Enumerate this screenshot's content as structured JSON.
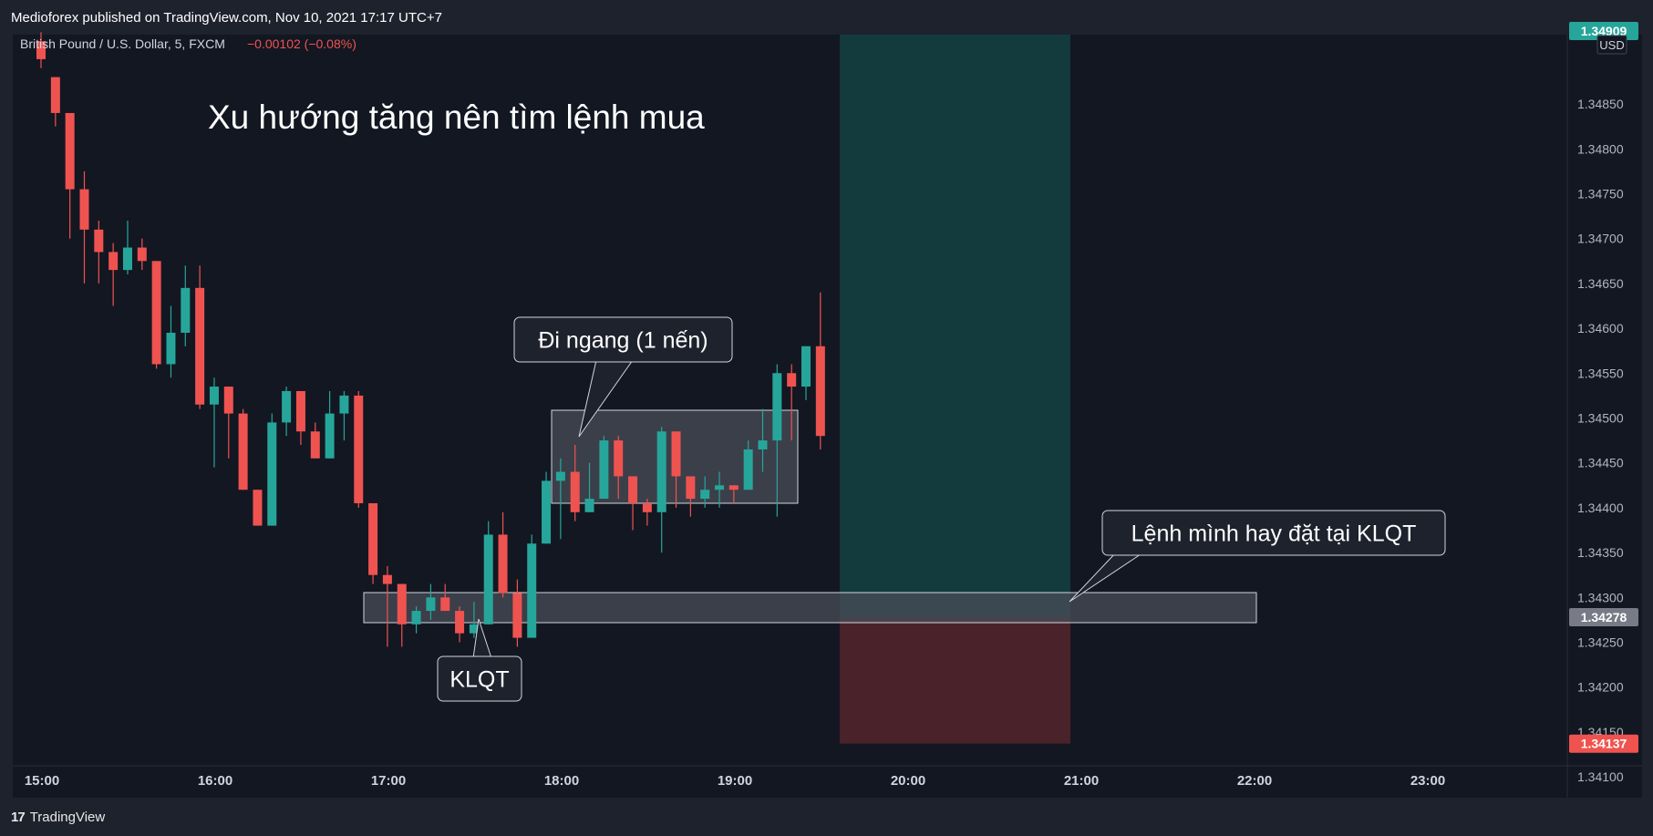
{
  "header": {
    "published_text": "Medioforex published on TradingView.com, Nov 10, 2021 17:17 UTC+7"
  },
  "footer": {
    "brand": "TradingView"
  },
  "colors": {
    "up": "#26a69a",
    "down": "#ef5350",
    "bg": "#131722",
    "target_zone": "#133a3c",
    "stop_zone": "#4a2229",
    "box": "#4a4e58"
  },
  "chart_data": {
    "type": "candlestick",
    "symbol": "British Pound / U.S. Dollar, 5, FXCM",
    "change": "−0.00102 (−0.08%)",
    "currency": "USD",
    "yticks": [
      "1.34850",
      "1.34800",
      "1.34750",
      "1.34700",
      "1.34650",
      "1.34600",
      "1.34550",
      "1.34500",
      "1.34450",
      "1.34400",
      "1.34350",
      "1.34300",
      "1.34250",
      "1.34200",
      "1.34150",
      "1.34100"
    ],
    "xticks": [
      "15:00",
      "16:00",
      "17:00",
      "18:00",
      "19:00",
      "20:00",
      "21:00",
      "22:00",
      "23:00"
    ],
    "price_labels": {
      "top": "1.34909",
      "entry": "1.34278",
      "stop": "1.34137"
    },
    "annotations": {
      "headline": "Xu hướng tăng nên tìm lệnh mua",
      "sideways": "Đi ngang (1 nến)",
      "order": "Lệnh mình hay đặt tại KLQT",
      "klqt": "KLQT"
    },
    "candles": [
      [
        1.3492,
        1.349,
        1.3493,
        1.3489
      ],
      [
        1.3488,
        1.3484,
        1.3488,
        1.34825
      ],
      [
        1.3484,
        1.34755,
        1.3484,
        1.347
      ],
      [
        1.34755,
        1.3471,
        1.34775,
        1.3465
      ],
      [
        1.3471,
        1.34685,
        1.3472,
        1.3465
      ],
      [
        1.34685,
        1.34665,
        1.34695,
        1.34625
      ],
      [
        1.34665,
        1.3469,
        1.3472,
        1.3466
      ],
      [
        1.3469,
        1.34675,
        1.347,
        1.34665
      ],
      [
        1.34675,
        1.3456,
        1.34675,
        1.34555
      ],
      [
        1.3456,
        1.34595,
        1.34625,
        1.34545
      ],
      [
        1.34595,
        1.34645,
        1.3467,
        1.3458
      ],
      [
        1.34645,
        1.34515,
        1.3467,
        1.3451
      ],
      [
        1.34515,
        1.34535,
        1.34545,
        1.34445
      ],
      [
        1.34535,
        1.34505,
        1.34535,
        1.34455
      ],
      [
        1.34505,
        1.3442,
        1.3451,
        1.3442
      ],
      [
        1.3442,
        1.3438,
        1.3442,
        1.3438
      ],
      [
        1.3438,
        1.34495,
        1.34505,
        1.3438
      ],
      [
        1.34495,
        1.3453,
        1.34535,
        1.3448
      ],
      [
        1.3453,
        1.34485,
        1.3453,
        1.3447
      ],
      [
        1.34485,
        1.34455,
        1.34495,
        1.34455
      ],
      [
        1.34455,
        1.34505,
        1.3453,
        1.34455
      ],
      [
        1.34505,
        1.34525,
        1.3453,
        1.34475
      ],
      [
        1.34525,
        1.34405,
        1.3453,
        1.344
      ],
      [
        1.34405,
        1.34325,
        1.34405,
        1.34315
      ],
      [
        1.34325,
        1.34315,
        1.34335,
        1.34245
      ],
      [
        1.34315,
        1.3427,
        1.34315,
        1.34245
      ],
      [
        1.3427,
        1.34285,
        1.3429,
        1.3426
      ],
      [
        1.34285,
        1.343,
        1.34315,
        1.34275
      ],
      [
        1.343,
        1.34285,
        1.34315,
        1.34285
      ],
      [
        1.34285,
        1.3426,
        1.3429,
        1.3425
      ],
      [
        1.3426,
        1.3427,
        1.34295,
        1.34255
      ],
      [
        1.3427,
        1.3437,
        1.34385,
        1.3427
      ],
      [
        1.3437,
        1.34305,
        1.34395,
        1.343
      ],
      [
        1.34305,
        1.34255,
        1.3432,
        1.34245
      ],
      [
        1.34255,
        1.3436,
        1.3437,
        1.34255
      ],
      [
        1.3436,
        1.3443,
        1.3444,
        1.3436
      ],
      [
        1.3443,
        1.3444,
        1.34455,
        1.34365
      ],
      [
        1.3444,
        1.34395,
        1.3447,
        1.34385
      ],
      [
        1.34395,
        1.3441,
        1.3445,
        1.34395
      ],
      [
        1.3441,
        1.34475,
        1.3448,
        1.3441
      ],
      [
        1.34475,
        1.34435,
        1.3448,
        1.3441
      ],
      [
        1.34435,
        1.34405,
        1.34435,
        1.34375
      ],
      [
        1.34405,
        1.34395,
        1.3441,
        1.3438
      ],
      [
        1.34395,
        1.34485,
        1.3449,
        1.3435
      ],
      [
        1.34485,
        1.34435,
        1.34485,
        1.344
      ],
      [
        1.34435,
        1.3441,
        1.34435,
        1.3439
      ],
      [
        1.3441,
        1.3442,
        1.34435,
        1.344
      ],
      [
        1.3442,
        1.34425,
        1.3444,
        1.344
      ],
      [
        1.34425,
        1.3442,
        1.34425,
        1.34405
      ],
      [
        1.3442,
        1.34465,
        1.34475,
        1.3442
      ],
      [
        1.34465,
        1.34475,
        1.3451,
        1.3444
      ],
      [
        1.34475,
        1.3455,
        1.3456,
        1.3439
      ],
      [
        1.3455,
        1.34535,
        1.3456,
        1.34475
      ],
      [
        1.34535,
        1.3458,
        1.3458,
        1.3452
      ],
      [
        1.3458,
        1.3448,
        1.3464,
        1.34465
      ]
    ]
  }
}
